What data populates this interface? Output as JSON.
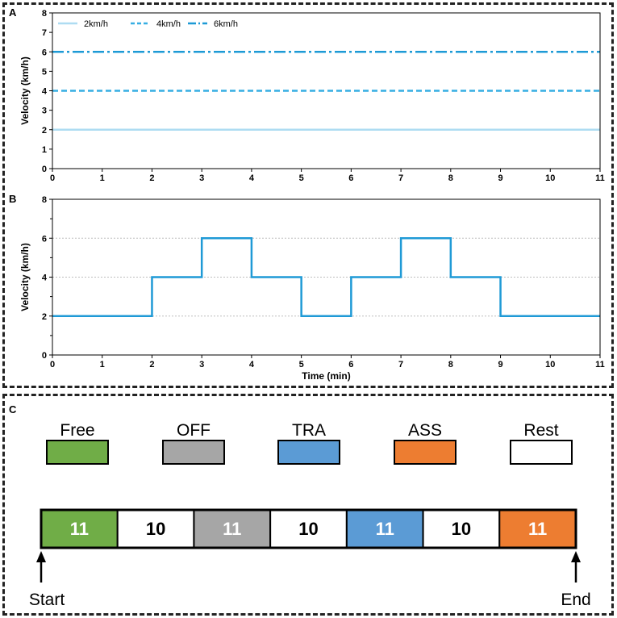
{
  "chart_data": [
    {
      "panel": "A",
      "type": "line",
      "xlabel": "",
      "ylabel": "Velocity (km/h)",
      "xlim": [
        0,
        11
      ],
      "ylim": [
        0,
        8
      ],
      "x_ticks": [
        0,
        1,
        2,
        3,
        4,
        5,
        6,
        7,
        8,
        9,
        10,
        11
      ],
      "y_ticks": [
        0,
        1,
        2,
        3,
        4,
        5,
        6,
        7,
        8
      ],
      "grid": false,
      "legend": "top-left",
      "series": [
        {
          "name": "2km/h",
          "style": "solid",
          "color": "#aedcf2",
          "x": [
            0,
            11
          ],
          "y": [
            2,
            2
          ]
        },
        {
          "name": "4km/h",
          "style": "dashed",
          "color": "#36aee3",
          "x": [
            0,
            11
          ],
          "y": [
            4,
            4
          ]
        },
        {
          "name": "6km/h",
          "style": "dashdot",
          "color": "#1d9ad6",
          "x": [
            0,
            11
          ],
          "y": [
            6,
            6
          ]
        }
      ]
    },
    {
      "panel": "B",
      "type": "line",
      "xlabel": "Time (min)",
      "ylabel": "Velocity (km/h)",
      "xlim": [
        0,
        11
      ],
      "ylim": [
        0,
        8
      ],
      "x_ticks": [
        0,
        1,
        2,
        3,
        4,
        5,
        6,
        7,
        8,
        9,
        10,
        11
      ],
      "y_ticks": [
        0,
        2,
        4,
        6,
        8
      ],
      "grid": "horizontal dotted",
      "series": [
        {
          "step": true,
          "color": "#1f9ad6",
          "x": [
            0,
            1,
            2,
            3,
            4,
            5,
            6,
            7,
            8,
            9,
            10,
            11
          ],
          "y": [
            2,
            2,
            4,
            6,
            4,
            2,
            4,
            6,
            4,
            2,
            2,
            2
          ]
        }
      ]
    }
  ],
  "panel_c": {
    "letter": "C",
    "legend": [
      {
        "label": "Free",
        "color": "#70ad47"
      },
      {
        "label": "OFF",
        "color": "#a6a6a6"
      },
      {
        "label": "TRA",
        "color": "#5b9bd5"
      },
      {
        "label": "ASS",
        "color": "#ed7d31"
      },
      {
        "label": "Rest",
        "color": "#ffffff"
      }
    ],
    "timeline": [
      {
        "value": "11",
        "phase": "Free"
      },
      {
        "value": "10",
        "phase": "Rest"
      },
      {
        "value": "11",
        "phase": "OFF"
      },
      {
        "value": "10",
        "phase": "Rest"
      },
      {
        "value": "11",
        "phase": "TRA"
      },
      {
        "value": "10",
        "phase": "Rest"
      },
      {
        "value": "11",
        "phase": "ASS"
      }
    ],
    "start_label": "Start",
    "end_label": "End"
  }
}
